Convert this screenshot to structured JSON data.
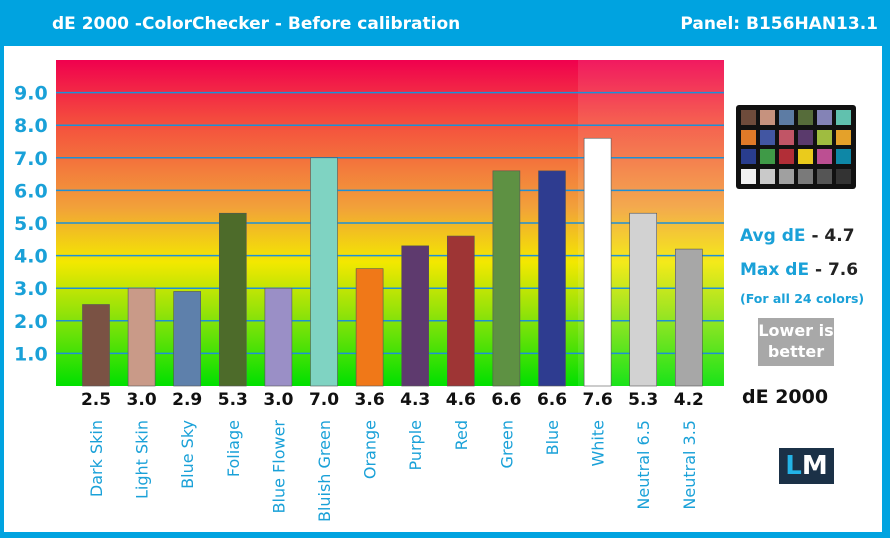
{
  "header": {
    "title": "dE 2000 -ColorChecker  - Before calibration",
    "panel": "Panel: B156HAN13.1"
  },
  "summary": {
    "avg_label": "Avg dE",
    "avg_value": "- 4.7",
    "max_label": "Max dE",
    "max_value": "- 7.6",
    "note": "(For all 24 colors)",
    "lower_line1": "Lower is",
    "lower_line2": "better",
    "metric": "dE 2000"
  },
  "logo": {
    "left": "L",
    "right": "M"
  },
  "colors": {
    "frame": "#00a3e0",
    "gradient_top": "#f0004e",
    "gradient_mid": "#f3e800",
    "gradient_bottom": "#00e000"
  },
  "colorchecker": {
    "swatches": [
      "#6e4b3b",
      "#c6927e",
      "#5d7ca4",
      "#566c3a",
      "#8483b6",
      "#61c1ae",
      "#e07a28",
      "#4256a2",
      "#c15566",
      "#5a3a6c",
      "#9fbc40",
      "#e4a12a",
      "#293d8e",
      "#3f9a47",
      "#b22e37",
      "#eacb1c",
      "#bc4f92",
      "#0e87a6",
      "#f2f2f2",
      "#c9c9c9",
      "#a0a0a0",
      "#7a7a7a",
      "#555555",
      "#333333"
    ]
  },
  "chart_data": {
    "type": "bar",
    "categories": [
      "Dark Skin",
      "Light Skin",
      "Blue Sky",
      "Foliage",
      "Blue Flower",
      "Bluish Green",
      "Orange",
      "Purple",
      "Red",
      "Green",
      "Blue",
      "White",
      "Neutral 6.5",
      "Neutral 3.5"
    ],
    "values": [
      2.5,
      3.0,
      2.9,
      5.3,
      3.0,
      7.0,
      3.6,
      4.3,
      4.6,
      6.6,
      6.6,
      7.6,
      5.3,
      4.2
    ],
    "value_labels": [
      "2.5",
      "3.0",
      "2.9",
      "5.3",
      "3.0",
      "7.0",
      "3.6",
      "4.3",
      "4.6",
      "6.6",
      "6.6",
      "7.6",
      "5.3",
      "4.2"
    ],
    "bar_colors": [
      "#7a5244",
      "#c99a88",
      "#5e80ab",
      "#4d6b2a",
      "#9a8fc6",
      "#7fd3c2",
      "#f07818",
      "#5e3a6e",
      "#9e3535",
      "#5e9143",
      "#2e3c90",
      "#ffffff",
      "#d2d2d2",
      "#a7a7a7"
    ],
    "ylim": [
      0,
      10
    ],
    "yticks": [
      "1.0",
      "2.0",
      "3.0",
      "4.0",
      "5.0",
      "6.0",
      "7.0",
      "8.0",
      "9.0"
    ],
    "title": "dE 2000 -ColorChecker  - Before calibration",
    "xlabel": "",
    "ylabel": "",
    "grid": true
  }
}
